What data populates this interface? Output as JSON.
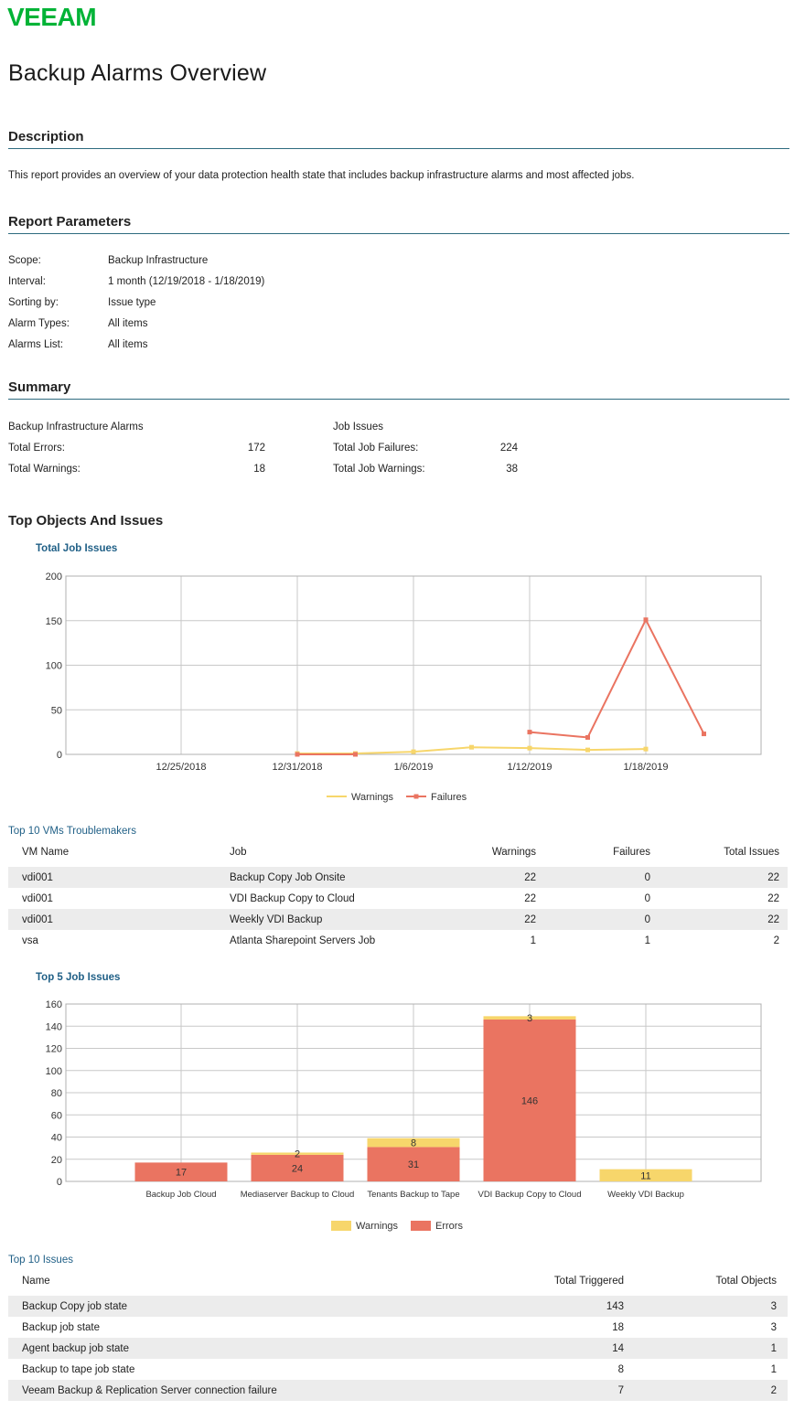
{
  "logo_text": "VEEAM",
  "title": "Backup Alarms Overview",
  "sections": {
    "description": "Description",
    "parameters": "Report Parameters",
    "summary": "Summary",
    "top": "Top Objects And Issues"
  },
  "description_text": "This report provides an overview of your data protection health state that includes backup infrastructure alarms and most affected jobs.",
  "parameters": [
    {
      "label": "Scope:",
      "value": "Backup Infrastructure"
    },
    {
      "label": "Interval:",
      "value": "1 month (12/19/2018 - 1/18/2019)"
    },
    {
      "label": "Sorting by:",
      "value": "Issue type"
    },
    {
      "label": "Alarm Types:",
      "value": "All items"
    },
    {
      "label": "Alarms List:",
      "value": "All items"
    }
  ],
  "summary": {
    "left": {
      "heading": "Backup Infrastructure Alarms",
      "rows": [
        {
          "label": "Total Errors:",
          "value": "172"
        },
        {
          "label": "Total Warnings:",
          "value": "18"
        }
      ]
    },
    "right": {
      "heading": "Job Issues",
      "rows": [
        {
          "label": "Total Job Failures:",
          "value": "224"
        },
        {
          "label": "Total Job Warnings:",
          "value": "38"
        }
      ]
    }
  },
  "colors": {
    "brand": "#00b336",
    "warnings": "#f7d66b",
    "failures": "#ea7461",
    "rule": "#2e6b7f",
    "link": "#1f5f86"
  },
  "chart_data": [
    {
      "type": "line",
      "title": "Total Job Issues",
      "x_ticks": [
        "12/25/2018",
        "12/31/2018",
        "1/6/2019",
        "1/12/2019",
        "1/18/2019"
      ],
      "ylim": [
        0,
        200
      ],
      "y_ticks": [
        0,
        50,
        100,
        150,
        200
      ],
      "grid": true,
      "legend": "bottom",
      "series": [
        {
          "name": "Warnings",
          "color": "#f7d66b",
          "points": [
            {
              "x": "12/31/2018",
              "y": 1
            },
            {
              "x": "1/3/2019",
              "y": 1
            },
            {
              "x": "1/6/2019",
              "y": 3
            },
            {
              "x": "1/9/2019",
              "y": 8
            },
            {
              "x": "1/12/2019",
              "y": 7
            },
            {
              "x": "1/15/2019",
              "y": 5
            },
            {
              "x": "1/18/2019",
              "y": 6
            }
          ]
        },
        {
          "name": "Failures",
          "color": "#ea7461",
          "points": [
            {
              "x": "12/31/2018",
              "y": 0
            },
            {
              "x": "1/3/2019",
              "y": 0
            },
            {
              "x": "1/12/2019",
              "y": 25
            },
            {
              "x": "1/15/2019",
              "y": 19
            },
            {
              "x": "1/18/2019",
              "y": 151
            },
            {
              "x": "1/21/2019",
              "y": 23
            }
          ]
        }
      ]
    },
    {
      "type": "bar",
      "stacked": true,
      "title": "Top 5 Job Issues",
      "categories": [
        "Backup Job Cloud",
        "Mediaserver Backup to Cloud",
        "Tenants Backup to Tape",
        "VDI Backup Copy to Cloud",
        "Weekly VDI Backup"
      ],
      "ylim": [
        0,
        160
      ],
      "y_ticks": [
        0,
        20,
        40,
        60,
        80,
        100,
        120,
        140,
        160
      ],
      "grid": true,
      "legend": "bottom",
      "series": [
        {
          "name": "Errors",
          "color": "#ea7461",
          "values": [
            17,
            24,
            31,
            146,
            0
          ]
        },
        {
          "name": "Warnings",
          "color": "#f7d66b",
          "values": [
            0,
            2,
            8,
            3,
            11
          ]
        }
      ]
    }
  ],
  "vms_table": {
    "title": "Top 10 VMs Troublemakers",
    "headers": [
      "VM Name",
      "Job",
      "Warnings",
      "Failures",
      "Total Issues"
    ],
    "rows": [
      [
        "vdi001",
        "Backup Copy Job Onsite",
        "22",
        "0",
        "22"
      ],
      [
        "vdi001",
        "VDI Backup Copy to Cloud",
        "22",
        "0",
        "22"
      ],
      [
        "vdi001",
        "Weekly VDI Backup",
        "22",
        "0",
        "22"
      ],
      [
        "vsa",
        "Atlanta Sharepoint Servers Job",
        "1",
        "1",
        "2"
      ]
    ]
  },
  "issues_table": {
    "title": "Top 10 Issues",
    "headers": [
      "Name",
      "Total Triggered",
      "Total Objects"
    ],
    "rows": [
      [
        "Backup Copy job state",
        "143",
        "3"
      ],
      [
        "Backup job state",
        "18",
        "3"
      ],
      [
        "Agent backup job state",
        "14",
        "1"
      ],
      [
        "Backup to tape job state",
        "8",
        "1"
      ],
      [
        "Veeam Backup & Replication Server connection failure",
        "7",
        "2"
      ]
    ]
  }
}
